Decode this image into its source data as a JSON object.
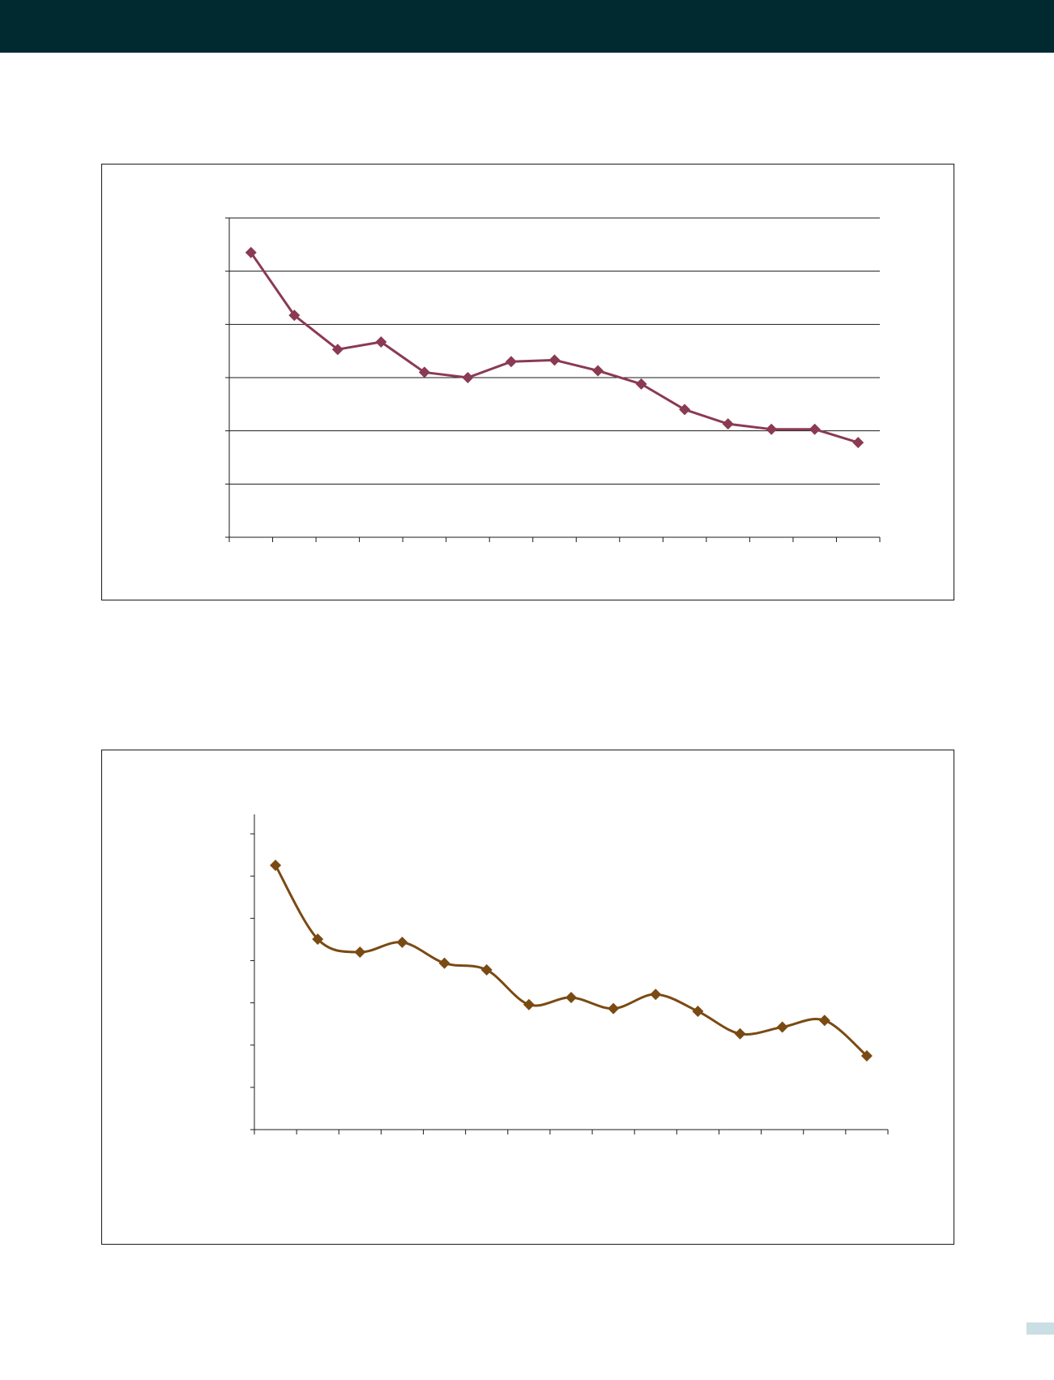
{
  "page": {
    "header_color": "#002a30",
    "page_tab_color": "#c9dfe3"
  },
  "chart_data": [
    {
      "type": "line",
      "title": "",
      "xlabel": "",
      "ylabel": "",
      "grid": true,
      "marker": "diamond",
      "color": "#8a3a52",
      "ylim": [
        0,
        6
      ],
      "series": [
        {
          "values": [
            5.35,
            4.17,
            3.53,
            3.67,
            3.1,
            3.0,
            3.3,
            3.33,
            3.13,
            2.88,
            2.4,
            2.13,
            2.03,
            2.03,
            1.78
          ]
        }
      ]
    },
    {
      "type": "line",
      "title": "",
      "xlabel": "",
      "ylabel": "",
      "grid": false,
      "smooth": true,
      "marker": "diamond",
      "color": "#7a4a13",
      "ylim": [
        0,
        7.5
      ],
      "series": [
        {
          "values": [
            6.7,
            4.83,
            4.5,
            4.75,
            4.22,
            4.05,
            3.17,
            3.35,
            3.07,
            3.43,
            3.0,
            2.43,
            2.6,
            2.77,
            1.87
          ]
        }
      ]
    }
  ]
}
